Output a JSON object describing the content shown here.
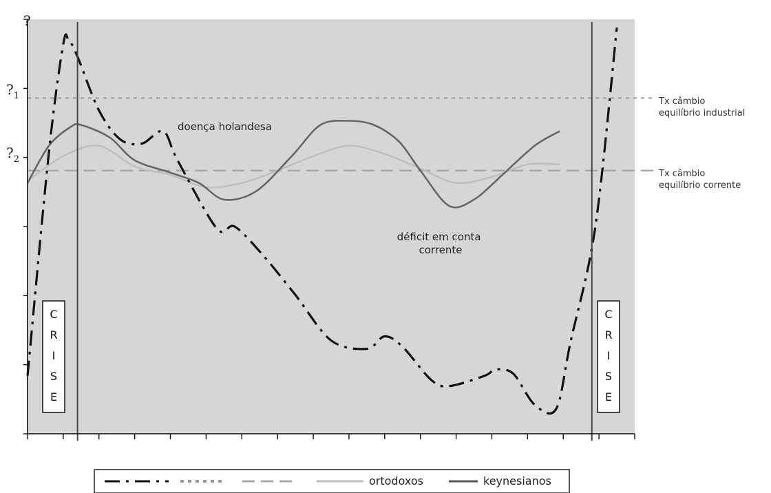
{
  "chart_data": {
    "type": "line",
    "title": "",
    "xlabel": "",
    "ylabel": "",
    "y_tick_labels": [
      "?",
      "?1",
      "?2"
    ],
    "xlim": [
      0,
      17
    ],
    "ylim": [
      0,
      10
    ],
    "grid": false,
    "legend_position": "bottom",
    "reference_lines": [
      {
        "name": "Tx câmbio equilíbrio industrial",
        "label_lines": [
          "Tx câmbio",
          "equilíbrio industrial"
        ],
        "y": 8.1,
        "style": "dotted",
        "color": "#9a9a9a"
      },
      {
        "name": "Tx câmbio equilíbrio corrente",
        "label_lines": [
          "Tx câmbio",
          "equilíbrio corrente"
        ],
        "y": 6.35,
        "style": "dashed",
        "color": "#a8a8a8"
      }
    ],
    "crisis_lines_x": [
      1.4,
      15.8
    ],
    "crisis_label": "CRISE",
    "annotations": [
      {
        "text": "doença holandesa",
        "x": 5.8,
        "y": 7.45
      },
      {
        "text_lines": [
          "déficit em conta",
          "corrente"
        ],
        "x": 10.8,
        "y": 4.7
      }
    ],
    "series": [
      {
        "style": "dash-dot",
        "color": "#111111",
        "x": [
          0,
          0.6,
          1.0,
          1.15,
          1.4,
          2.0,
          2.6,
          3.2,
          3.8,
          4.2,
          5.3,
          5.8,
          6.6,
          7.5,
          8.5,
          9.5,
          10.0,
          10.5,
          11.3,
          11.8,
          12.8,
          13.1,
          13.6,
          14.2,
          14.8,
          15.2,
          15.9,
          16.5
        ],
        "y": [
          1.4,
          6.8,
          9.4,
          9.5,
          9.1,
          7.8,
          7.1,
          7.0,
          7.3,
          6.6,
          4.95,
          5.0,
          4.3,
          3.35,
          2.25,
          2.05,
          2.35,
          2.1,
          1.3,
          1.15,
          1.4,
          1.55,
          1.45,
          0.7,
          0.6,
          2.2,
          5.0,
          9.8
        ]
      },
      {
        "name": "ortodoxos",
        "style": "solid",
        "color": "#bdbdbd",
        "x": [
          0,
          1.0,
          2.0,
          3.0,
          4.0,
          5.0,
          6.0,
          7.0,
          8.0,
          9.0,
          10.0,
          11.0,
          12.0,
          13.0,
          14.0,
          14.9
        ],
        "y": [
          6.1,
          6.7,
          6.95,
          6.45,
          6.25,
          5.95,
          6.05,
          6.35,
          6.7,
          6.95,
          6.75,
          6.4,
          6.05,
          6.2,
          6.5,
          6.5
        ]
      },
      {
        "name": "keynesianos",
        "style": "solid",
        "color": "#666666",
        "x": [
          0,
          0.6,
          1.2,
          1.5,
          2.3,
          3.0,
          4.0,
          4.8,
          5.5,
          6.4,
          7.4,
          8.2,
          9.0,
          9.7,
          10.4,
          11.0,
          11.8,
          12.5,
          13.3,
          14.2,
          14.9
        ],
        "y": [
          6.05,
          6.95,
          7.4,
          7.45,
          7.15,
          6.6,
          6.3,
          6.05,
          5.65,
          5.85,
          6.7,
          7.45,
          7.55,
          7.45,
          7.05,
          6.35,
          5.5,
          5.65,
          6.25,
          6.95,
          7.3
        ]
      }
    ],
    "legend": [
      {
        "style": "dash-dot",
        "color": "#111111",
        "label": ""
      },
      {
        "style": "dotted",
        "color": "#9a9a9a",
        "label": ""
      },
      {
        "style": "dashed",
        "color": "#a8a8a8",
        "label": ""
      },
      {
        "style": "solid",
        "color": "#bdbdbd",
        "label": "ortodoxos"
      },
      {
        "style": "solid",
        "color": "#555555",
        "label": "keynesianos"
      }
    ],
    "colors": {
      "plot_background": "#d6d6d6",
      "axis": "#111111",
      "crisis_line": "#444444"
    }
  }
}
